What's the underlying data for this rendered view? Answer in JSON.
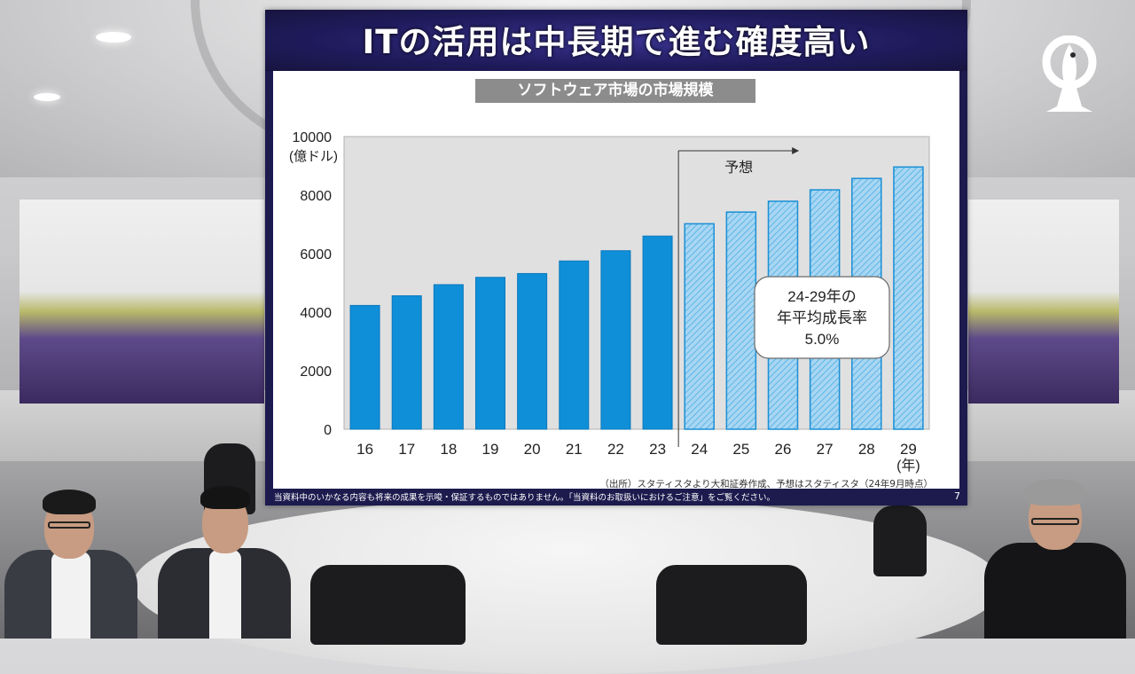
{
  "slide": {
    "title": "ITの活用は中長期で進む確度高い",
    "chart_title": "ソフトウェア市場の市場規模",
    "disclaimer": "当資料中のいかなる内容も将来の成果を示唆・保証するものではありません。「当資料のお取扱いにおけるご注意」をご覧ください。",
    "page_number": "7",
    "source": "（出所）スタティスタより大和証券作成、予想はスタティスタ（24年9月時点）"
  },
  "chart_data": {
    "type": "bar",
    "title": "ソフトウェア市場の市場規模",
    "ylabel": "(億ドル)",
    "xlabel": "(年)",
    "ylim": [
      0,
      10000
    ],
    "yticks": [
      0,
      2000,
      4000,
      6000,
      8000,
      10000
    ],
    "categories": [
      "16",
      "17",
      "18",
      "19",
      "20",
      "21",
      "22",
      "23",
      "24",
      "25",
      "26",
      "27",
      "28",
      "29"
    ],
    "values": [
      4230,
      4560,
      4940,
      5190,
      5320,
      5750,
      6100,
      6600,
      7020,
      7420,
      7790,
      8180,
      8570,
      8960
    ],
    "forecast_start_index": 8,
    "forecast_label": "予想",
    "annotation": {
      "line1": "24-29年の",
      "line2": "年平均成長率",
      "line3": "5.0%"
    },
    "colors": {
      "actual": "#0f8fd8",
      "forecast_fill": "#9fd1f0",
      "forecast_stroke": "#1a8fd6",
      "plot_bg": "#e0e0e0"
    }
  }
}
